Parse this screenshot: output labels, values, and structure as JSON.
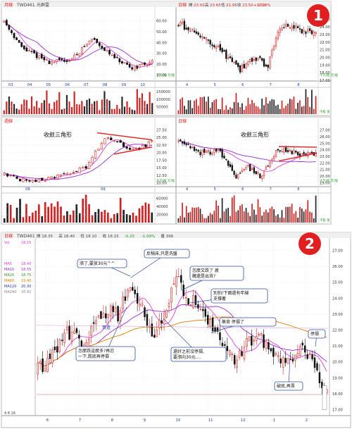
{
  "colors": {
    "up": "#e02020",
    "down": "#111111",
    "ma1": "#e040e0",
    "ma2": "#9a2ad0",
    "ma3": "#e08000",
    "vol": "#d02020",
    "grid": "#d8d8d8",
    "trend": "#e02020",
    "callout": "#1a3da8"
  },
  "badges": {
    "one": "1",
    "two": "2"
  },
  "panel1": {
    "left_header": {
      "tag": "月線",
      "code": "TWD461",
      "name": "光群雷"
    },
    "right_header": {
      "tag": "日線",
      "fields": [
        "開",
        "23.00",
        "高",
        "23.65",
        "低",
        "22.95",
        "收",
        "23.50",
        "+0.50",
        "2.18%"
      ]
    },
    "left_price_ticks": [
      "60.00",
      "50.00",
      "40.00",
      "30.00",
      "20.00",
      "10.00"
    ],
    "left_price_axis_unit": "千元/股 元/股",
    "left_xticks": [
      "03",
      "04",
      "05",
      "06",
      "07",
      "08",
      "09",
      "10"
    ],
    "right_price_ticks": [
      "25.00",
      "24.00",
      "23.00",
      "22.00",
      "21.00",
      "20.00",
      "19.00",
      "18.00",
      "17.00"
    ],
    "right_price_axis_unit": "千元/股 元/股",
    "right_xticks": [
      "4",
      "5",
      "6",
      "7",
      "8"
    ],
    "vol_ticks": [
      "150000",
      "100000",
      "50000"
    ],
    "vol_axis_unit": "千股 張"
  },
  "panel2": {
    "left_header": {
      "tag": "週線"
    },
    "right_header": {
      "tag": "日線"
    },
    "left_label": "收斂三角形",
    "right_label": "收斂三角形",
    "left_price_ticks": [
      "27.50",
      "25.00",
      "22.50",
      "20.00",
      "17.50",
      "15.00",
      "12.50",
      "10.00"
    ],
    "left_price_axis_unit": "千元/股 元/股",
    "left_xticks": [
      "08",
      "09"
    ],
    "right_price_ticks": [
      "27.00",
      "26.00",
      "25.00",
      "24.00",
      "23.00",
      "22.00",
      "21.00",
      "20.00",
      "19.00"
    ],
    "right_price_axis_unit": "千元/股 元/股",
    "right_xticks": [
      "4",
      "5",
      "6",
      "7",
      "8"
    ],
    "vol_ticks": [
      "60000",
      "40000",
      "20000"
    ],
    "vol_axis_unit": "千股 張"
  },
  "panel3": {
    "header": {
      "tag": "日線",
      "code": "TWD461",
      "fields": [
        "開 18.35",
        "高 18.40",
        "低 18.10",
        "收 18.15",
        "-0.20",
        "-1.09%",
        "量 396"
      ]
    },
    "legend_labels": [
      "Vol",
      "MA5",
      "MA10",
      "MA20",
      "MA60",
      "MA120",
      "MA240"
    ],
    "legend_values": [
      "18.15",
      "18.40",
      "18.55",
      "18.75",
      "19.40",
      "20.30",
      "20.92"
    ],
    "price_ticks": [
      "27.00",
      "26.00",
      "25.00",
      "24.00",
      "23.00",
      "22.00",
      "21.00",
      "20.00",
      "19.00",
      "18.00",
      "17.00"
    ],
    "xticks": [
      "6",
      "7",
      "8",
      "9",
      "10",
      "11",
      "12",
      "1",
      "2"
    ],
    "leftbottom": "4 8 16",
    "callouts": {
      "c1": "漲了,要放30元^^",
      "c2": "反騎床,只是洗盤",
      "c3": "怎麼又跌了    疲\n醜還是出貨?",
      "c4": "別怕!下面還有年線\n支撐著",
      "c5": "無背      停損了",
      "c6": "停損",
      "c7": "怎麼跌這麼多?再忍\n一下,跌底再停損",
      "c8": "還好之前沒停損,\n要漲向30元....",
      "c9": "破底,再賣",
      "c10": "買進"
    }
  },
  "chart_data": [
    {
      "type": "candlestick",
      "title": "光群雷 月線",
      "xlabel": "",
      "ylabel": "",
      "x_ticks": [
        "03",
        "04",
        "05",
        "06",
        "07",
        "08",
        "09",
        "10"
      ],
      "ylim": [
        5,
        65
      ],
      "y_ticks": [
        60,
        50,
        40,
        30,
        20,
        10
      ],
      "note": "monthly candles, price falls from ~60 to ~17 then recovers toward ~23"
    },
    {
      "type": "candlestick",
      "title": "日線",
      "x_ticks": [
        "4",
        "5",
        "6",
        "7",
        "8"
      ],
      "ylim": [
        17,
        25.5
      ],
      "y_ticks": [
        25,
        24,
        23,
        22,
        21,
        20,
        19,
        18,
        17
      ],
      "last": {
        "open": 23.0,
        "high": 23.65,
        "low": 22.95,
        "close": 23.5,
        "change": 0.5,
        "pct": 2.18
      }
    },
    {
      "type": "candlestick",
      "title": "週線 收斂三角形",
      "x_ticks": [
        "08",
        "09"
      ],
      "ylim": [
        9,
        28.5
      ],
      "y_ticks": [
        27.5,
        25,
        22.5,
        20,
        17.5,
        15,
        12.5,
        10
      ]
    },
    {
      "type": "candlestick",
      "title": "日線 收斂三角形",
      "x_ticks": [
        "4",
        "5",
        "6",
        "7",
        "8"
      ],
      "ylim": [
        18.5,
        27.5
      ],
      "y_ticks": [
        27,
        26,
        25,
        24,
        23,
        22,
        21,
        20,
        19
      ]
    },
    {
      "type": "candlestick",
      "title": "日線",
      "x_ticks": [
        "6",
        "7",
        "8",
        "9",
        "10",
        "11",
        "12",
        "1",
        "2"
      ],
      "ylim": [
        16.8,
        27.6
      ],
      "y_ticks": [
        27,
        26,
        25,
        24,
        23,
        22,
        21,
        20,
        19,
        18,
        17
      ],
      "last": {
        "open": 18.35,
        "high": 18.4,
        "low": 18.1,
        "close": 18.15,
        "change": -0.2,
        "pct": -1.09,
        "volume": 396
      },
      "moving_averages": {
        "MA5": 18.4,
        "MA10": 18.55,
        "MA20": 18.75,
        "MA60": 19.4,
        "MA120": 20.3,
        "MA240": 20.92
      }
    }
  ]
}
